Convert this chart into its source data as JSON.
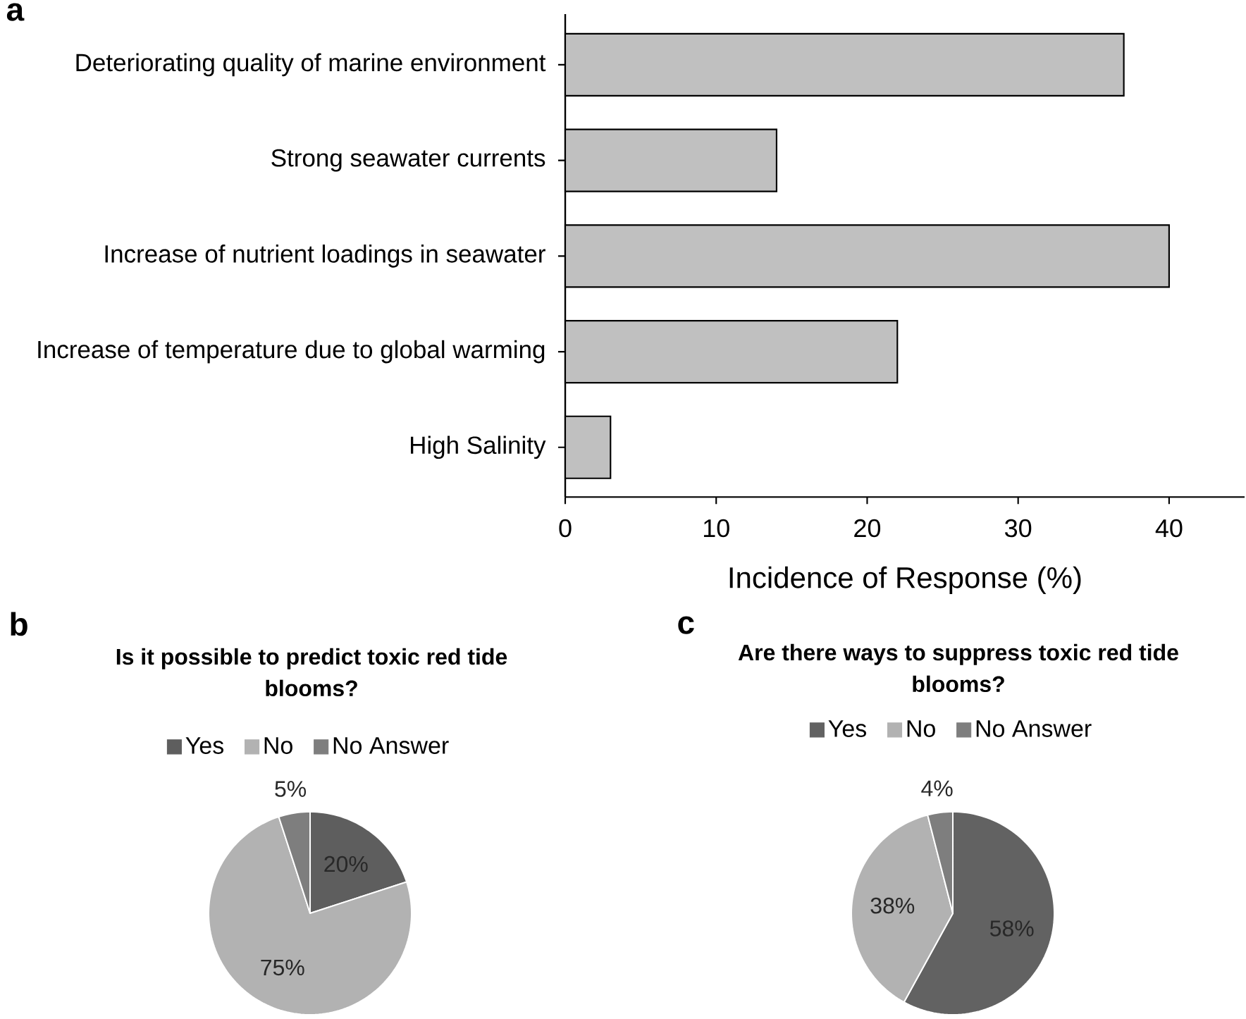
{
  "chart_data": [
    {
      "type": "bar",
      "orientation": "horizontal",
      "annotations": [
        "a"
      ],
      "categories": [
        "Deteriorating quality of marine environment",
        "Strong seawater currents",
        "Increase of nutrient loadings in seawater",
        "Increase of temperature due to global warming",
        "High Salinity"
      ],
      "values": [
        37,
        14,
        40,
        22,
        3
      ],
      "color": "#c0c0c0",
      "xlabel": "Incidence of Response (%)",
      "xlim": [
        0,
        45
      ],
      "xticks": [
        0,
        10,
        20,
        30,
        40
      ]
    },
    {
      "type": "pie",
      "annotations": [
        "b"
      ],
      "title": "Is it possible to predict toxic red tide blooms?",
      "categories": [
        "Yes",
        "No",
        "No Answer"
      ],
      "values": [
        20,
        75,
        5
      ],
      "colors": [
        "#5e5e5e",
        "#b2b2b2",
        "#7e7e7e"
      ],
      "value_labels": [
        "20%",
        "75%",
        "5%"
      ],
      "legend": "top"
    },
    {
      "type": "pie",
      "annotations": [
        "c"
      ],
      "title": "Are there ways to suppress toxic red tide blooms?",
      "categories": [
        "Yes",
        "No",
        "No Answer"
      ],
      "values": [
        58,
        38,
        4
      ],
      "colors": [
        "#626262",
        "#b2b2b2",
        "#7e7e7e"
      ],
      "value_labels": [
        "58%",
        "38%",
        "4%"
      ],
      "legend": "top"
    }
  ]
}
